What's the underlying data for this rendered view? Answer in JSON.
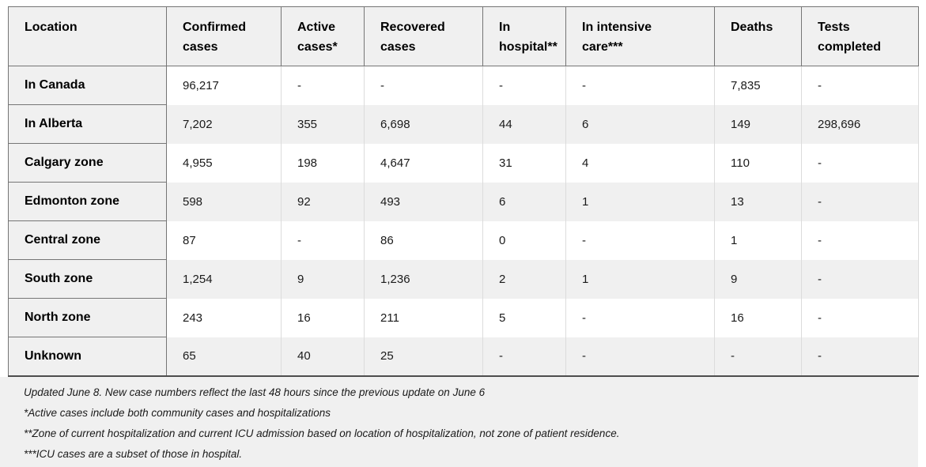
{
  "chart_data": {
    "type": "table",
    "columns": [
      "Location",
      "Confirmed cases",
      "Active cases*",
      "Recovered cases",
      "In hospital**",
      "In intensive care***",
      "Deaths",
      "Tests completed"
    ],
    "rows": [
      {
        "location": "In Canada",
        "values": [
          "96,217",
          "-",
          "-",
          "-",
          "-",
          "7,835",
          "-"
        ]
      },
      {
        "location": "In Alberta",
        "values": [
          "7,202",
          "355",
          "6,698",
          "44",
          "6",
          "149",
          "298,696"
        ]
      },
      {
        "location": "Calgary zone",
        "values": [
          "4,955",
          "198",
          "4,647",
          "31",
          "4",
          "110",
          "-"
        ]
      },
      {
        "location": "Edmonton zone",
        "values": [
          "598",
          "92",
          "493",
          "6",
          "1",
          "13",
          "-"
        ]
      },
      {
        "location": "Central zone",
        "values": [
          "87",
          "-",
          "86",
          "0",
          "-",
          "1",
          "-"
        ]
      },
      {
        "location": "South zone",
        "values": [
          "1,254",
          "9",
          "1,236",
          "2",
          "1",
          "9",
          "-"
        ]
      },
      {
        "location": "North zone",
        "values": [
          "243",
          "16",
          "211",
          "5",
          "-",
          "16",
          "-"
        ]
      },
      {
        "location": "Unknown",
        "values": [
          "65",
          "40",
          "25",
          "-",
          "-",
          "-",
          "-"
        ]
      }
    ],
    "notes": [
      "Updated June 8. New case numbers reflect the last 48 hours since the previous update on June 6",
      "*Active cases include both community cases and hospitalizations",
      "**Zone of current hospitalization and current ICU admission based on location of hospitalization, not zone of patient residence.",
      "***ICU cases are a subset of those in hospital."
    ],
    "layout_hints": {
      "legend": "none",
      "grid": "table borders",
      "row_striping": "odd rows white, even rows gray"
    }
  },
  "colors": {
    "cell_gray": "#f0f0f0",
    "dark_border": "#757575",
    "light_border": "#dcdcdc",
    "bottom_border": "#4d4d4d",
    "page_background": "#ffffff",
    "text": "#1a1a1a"
  }
}
